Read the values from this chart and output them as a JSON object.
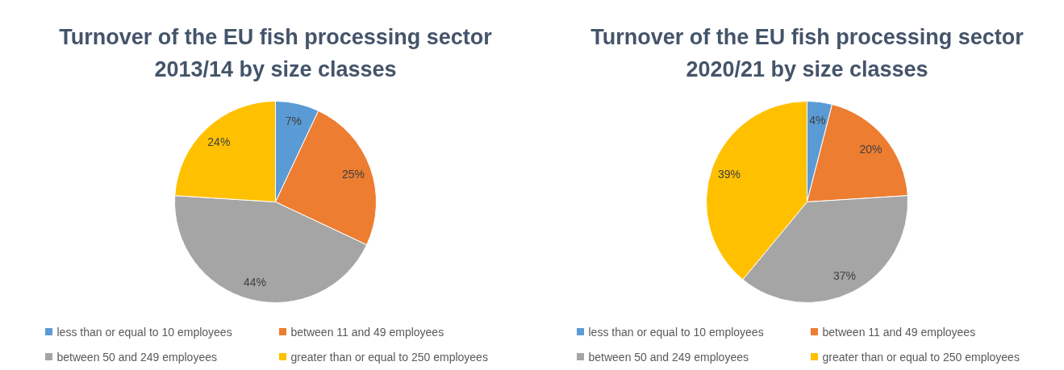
{
  "chart_data": [
    {
      "type": "pie",
      "title": "Turnover of the EU fish processing sector 2013/14 by size classes",
      "categories": [
        "less than or equal to 10 employees",
        "between 11 and 49 employees",
        "between 50 and 249 employees",
        "greater than or equal to 250 employees"
      ],
      "values": [
        7,
        25,
        44,
        24
      ],
      "value_labels": [
        "7%",
        "25%",
        "44%",
        "24%"
      ],
      "colors": [
        "#5b9bd5",
        "#ed7d31",
        "#a5a5a5",
        "#ffc000"
      ],
      "legend": "bottom"
    },
    {
      "type": "pie",
      "title": "Turnover of the EU fish processing sector 2020/21 by size classes",
      "categories": [
        "less than or equal to 10 employees",
        "between 11 and 49 employees",
        "between 50 and 249 employees",
        "greater than or equal to 250 employees"
      ],
      "values": [
        4,
        20,
        37,
        39
      ],
      "value_labels": [
        "4%",
        "20%",
        "37%",
        "39%"
      ],
      "colors": [
        "#5b9bd5",
        "#ed7d31",
        "#a5a5a5",
        "#ffc000"
      ],
      "legend": "bottom"
    }
  ]
}
